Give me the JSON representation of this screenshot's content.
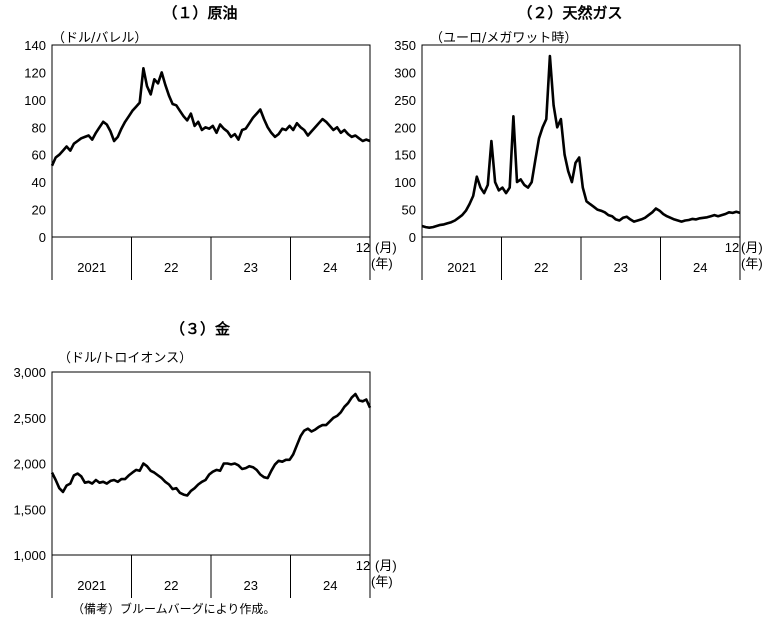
{
  "note": "（備考）ブルームバーグにより作成。",
  "chart_data": [
    {
      "type": "line",
      "title": "（１）原油",
      "ylabel": "（ドル/バレル）",
      "ylim": [
        0,
        140
      ],
      "yticks": [
        "0",
        "20",
        "40",
        "60",
        "80",
        "100",
        "120",
        "140"
      ],
      "year_labels": [
        "2021",
        "22",
        "23",
        "24"
      ],
      "month_label": "12",
      "month_unit": "(月)",
      "year_unit": "(年)",
      "series": [
        {
          "values": [
            52,
            58,
            60,
            63,
            66,
            63,
            68,
            70,
            72,
            73,
            74,
            71,
            76,
            80,
            84,
            82,
            77,
            70,
            73,
            79,
            84,
            88,
            92,
            95,
            98,
            123,
            110,
            104,
            115,
            112,
            120,
            111,
            103,
            97,
            96,
            92,
            88,
            85,
            90,
            81,
            84,
            78,
            80,
            79,
            81,
            76,
            82,
            79,
            77,
            73,
            75,
            71,
            78,
            79,
            83,
            87,
            90,
            93,
            86,
            80,
            76,
            73,
            75,
            79,
            78,
            81,
            78,
            83,
            80,
            78,
            74,
            77,
            80,
            83,
            86,
            84,
            81,
            78,
            80,
            76,
            78,
            75,
            73,
            74,
            72,
            70,
            71,
            70
          ]
        }
      ]
    },
    {
      "type": "line",
      "title": "（２）天然ガス",
      "ylabel": "（ユーロ/メガワット時）",
      "ylim": [
        0,
        350
      ],
      "yticks": [
        "0",
        "50",
        "100",
        "150",
        "200",
        "250",
        "300",
        "350"
      ],
      "year_labels": [
        "2021",
        "22",
        "23",
        "24"
      ],
      "month_label": "12",
      "month_unit": "(月)",
      "year_unit": "(年)",
      "series": [
        {
          "values": [
            20,
            18,
            17,
            18,
            20,
            22,
            23,
            25,
            27,
            30,
            35,
            40,
            48,
            60,
            75,
            110,
            90,
            80,
            95,
            175,
            100,
            85,
            90,
            80,
            90,
            220,
            100,
            105,
            95,
            90,
            100,
            140,
            180,
            200,
            215,
            330,
            240,
            200,
            215,
            150,
            120,
            100,
            135,
            145,
            90,
            65,
            60,
            55,
            50,
            48,
            45,
            40,
            38,
            32,
            30,
            35,
            37,
            32,
            28,
            30,
            32,
            35,
            40,
            45,
            52,
            48,
            42,
            38,
            35,
            32,
            30,
            28,
            30,
            31,
            33,
            32,
            34,
            35,
            36,
            38,
            40,
            38,
            40,
            42,
            45,
            44,
            46,
            44
          ]
        }
      ]
    },
    {
      "type": "line",
      "title": "（３）金",
      "ylabel": "（ドル/トロイオンス）",
      "ylim": [
        1000,
        3000
      ],
      "yticks": [
        "1,000",
        "1,500",
        "2,000",
        "2,500",
        "3,000"
      ],
      "year_labels": [
        "2021",
        "22",
        "23",
        "24"
      ],
      "month_label": "12",
      "month_unit": "(月)",
      "year_unit": "(年)",
      "series": [
        {
          "values": [
            1900,
            1820,
            1730,
            1690,
            1760,
            1780,
            1870,
            1890,
            1860,
            1790,
            1800,
            1780,
            1820,
            1790,
            1800,
            1780,
            1810,
            1820,
            1800,
            1830,
            1830,
            1870,
            1900,
            1930,
            1920,
            2000,
            1970,
            1920,
            1900,
            1870,
            1840,
            1800,
            1770,
            1720,
            1730,
            1680,
            1660,
            1650,
            1700,
            1730,
            1770,
            1800,
            1820,
            1880,
            1910,
            1930,
            1920,
            2000,
            2000,
            1990,
            2000,
            1980,
            1940,
            1950,
            1970,
            1960,
            1930,
            1880,
            1850,
            1840,
            1920,
            1990,
            2030,
            2020,
            2040,
            2040,
            2100,
            2200,
            2300,
            2360,
            2380,
            2350,
            2370,
            2400,
            2420,
            2420,
            2460,
            2500,
            2520,
            2560,
            2620,
            2660,
            2720,
            2760,
            2690,
            2680,
            2700,
            2610
          ]
        }
      ]
    }
  ]
}
